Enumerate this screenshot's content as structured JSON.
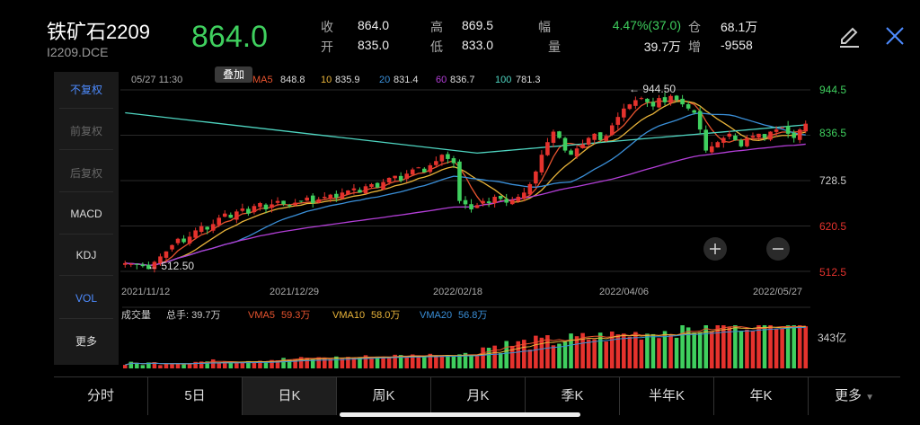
{
  "header": {
    "title": "铁矿石2209",
    "subtitle": "I2209.DCE",
    "price": "864.0",
    "stats": [
      {
        "label": "收",
        "value": "864.0"
      },
      {
        "label": "开",
        "value": "835.0"
      },
      {
        "label": "高",
        "value": "869.5"
      },
      {
        "label": "低",
        "value": "833.0"
      },
      {
        "label": "幅",
        "value": "4.47%(37.0)"
      },
      {
        "label": "量",
        "value": "39.7万"
      },
      {
        "label": "仓",
        "value": "68.1万"
      },
      {
        "label": "增",
        "value": "-9558"
      }
    ],
    "edit_icon": "pencil-icon",
    "close_icon": "close-icon"
  },
  "left_menu": [
    "不复权",
    "前复权",
    "后复权",
    "MACD",
    "KDJ",
    "VOL",
    "更多"
  ],
  "overlay_button": "叠加",
  "bottom_tabs": [
    "分时",
    "5日",
    "日K",
    "周K",
    "月K",
    "季K",
    "半年K",
    "年K",
    "更多"
  ],
  "colors": {
    "up": "#e5322d",
    "down": "#3fcf5e",
    "ma5": "#e8542f",
    "ma10": "#e9b43a",
    "ma20": "#3a8fd8",
    "ma60": "#b23ed6",
    "ma100": "#4ed4c0",
    "accent": "#4d8bff"
  },
  "chart_data": {
    "type": "candlestick",
    "info_date": "05/27 11:30",
    "ma_legend": [
      {
        "name": "MA5",
        "value": "848.8"
      },
      {
        "name": "10",
        "value": "835.9"
      },
      {
        "name": "20",
        "value": "831.4"
      },
      {
        "name": "60",
        "value": "836.7"
      },
      {
        "name": "100",
        "value": "781.3"
      }
    ],
    "y_ticks": [
      "944.5",
      "836.5",
      "728.5",
      "620.5",
      "512.5"
    ],
    "y_values": [
      944.5,
      836.5,
      728.5,
      620.5,
      512.5
    ],
    "ylim": [
      512.5,
      944.5
    ],
    "x_ticks": [
      "2021/11/12",
      "2021/12/29",
      "2022/02/18",
      "2022/04/06",
      "2022/05/27"
    ],
    "annotations": [
      {
        "text": "← 944.50",
        "value": 944.5
      },
      {
        "text": "← 512.50",
        "value": 512.5
      }
    ],
    "close_series": [
      532,
      530,
      528,
      525,
      518,
      535,
      548,
      560,
      575,
      590,
      582,
      595,
      610,
      620,
      612,
      625,
      640,
      650,
      640,
      655,
      662,
      650,
      668,
      675,
      660,
      672,
      680,
      672,
      668,
      676,
      680,
      688,
      675,
      684,
      690,
      695,
      688,
      700,
      705,
      710,
      700,
      715,
      720,
      712,
      725,
      735,
      740,
      728,
      745,
      755,
      760,
      748,
      765,
      775,
      790,
      780,
      770,
      680,
      672,
      660,
      670,
      680,
      675,
      690,
      685,
      676,
      682,
      690,
      700,
      720,
      750,
      790,
      820,
      845,
      830,
      800,
      790,
      805,
      815,
      830,
      840,
      825,
      835,
      860,
      880,
      900,
      910,
      920,
      925,
      915,
      905,
      925,
      915,
      930,
      920,
      910,
      900,
      890,
      850,
      800,
      810,
      820,
      830,
      840,
      825,
      810,
      830,
      835,
      840,
      830,
      845,
      850,
      855,
      840,
      830,
      850,
      864
    ],
    "volume": {
      "label": "成交量",
      "total": "总手: 39.7万",
      "vma": [
        {
          "name": "VMA5",
          "value": "59.3万"
        },
        {
          "name": "VMA10",
          "value": "58.0万"
        },
        {
          "name": "VMA20",
          "value": "56.8万"
        }
      ],
      "scale_label": "343亿"
    }
  }
}
